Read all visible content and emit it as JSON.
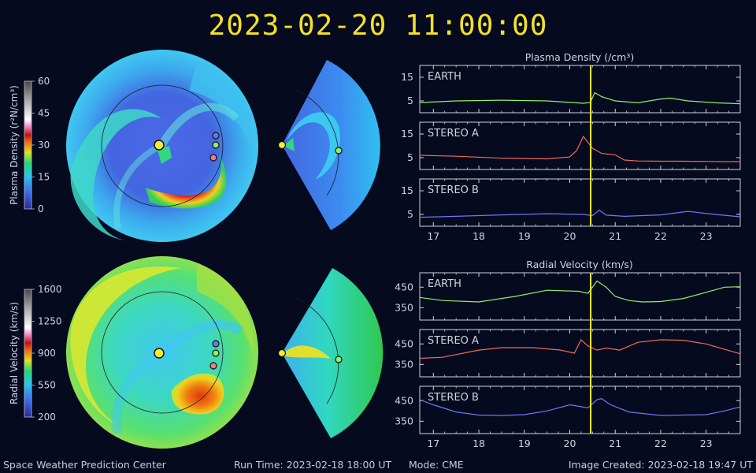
{
  "title": "2023-02-20 11:00:00",
  "colors": {
    "earth": "#8cf26a",
    "stereo_a": "#f06a5a",
    "stereo_b": "#6e78f5",
    "marker": "#f5ee2a",
    "axis": "#cfd3e0"
  },
  "colorbars": {
    "density": {
      "label": "Plasma Density (r²N/cm³)",
      "ticks": [
        "60",
        "45",
        "30",
        "15",
        "0"
      ]
    },
    "velocity": {
      "label": "Radial Velocity (km/s)",
      "ticks": [
        "1600",
        "1250",
        "900",
        "550",
        "200"
      ]
    }
  },
  "footer": {
    "center": "Space Weather Prediction Center",
    "run_time": "Run Time: 2023-02-18 18:00 UT",
    "mode": "Mode: CME",
    "image_created": "Image Created: 2023-02-18 19:47 UT"
  },
  "chart_data": [
    {
      "type": "line",
      "title": "Plasma Density (/cm³)",
      "time_marker": 20.46,
      "xlim": [
        16.7,
        23.75
      ],
      "x_ticks": [
        "17",
        "18",
        "19",
        "20",
        "21",
        "22",
        "23"
      ],
      "panels": [
        {
          "name": "EARTH",
          "ylim": [
            0,
            20
          ],
          "y_ticks": [
            "15",
            "5"
          ],
          "x": [
            16.7,
            17.5,
            18.5,
            19.5,
            20.3,
            20.45,
            20.55,
            20.7,
            21.0,
            21.5,
            22.0,
            22.2,
            22.6,
            23.2,
            23.75
          ],
          "values": [
            4.3,
            5.0,
            5.3,
            5.0,
            4.0,
            4.3,
            8.5,
            6.8,
            5.0,
            4.2,
            5.8,
            6.2,
            5.0,
            4.2,
            3.8
          ]
        },
        {
          "name": "STEREO A",
          "ylim": [
            0,
            20
          ],
          "y_ticks": [
            "15",
            "5"
          ],
          "x": [
            16.7,
            17.5,
            18.5,
            19.5,
            20.0,
            20.15,
            20.3,
            20.5,
            20.7,
            21.0,
            21.2,
            21.5,
            22.0,
            22.5,
            23.0,
            23.75
          ],
          "values": [
            6.0,
            5.6,
            4.8,
            4.5,
            5.3,
            8.0,
            14.0,
            9.0,
            6.8,
            6.2,
            4.0,
            3.6,
            3.5,
            3.5,
            3.4,
            3.3
          ]
        },
        {
          "name": "STEREO B",
          "ylim": [
            0,
            20
          ],
          "y_ticks": [
            "15",
            "5"
          ],
          "x": [
            16.7,
            17.5,
            18.5,
            19.5,
            20.3,
            20.5,
            20.65,
            20.8,
            21.2,
            22.0,
            22.6,
            23.2,
            23.75
          ],
          "values": [
            3.8,
            4.2,
            4.8,
            5.3,
            5.0,
            4.5,
            6.8,
            4.7,
            4.2,
            4.8,
            6.3,
            5.0,
            4.0
          ]
        }
      ]
    },
    {
      "type": "line",
      "title": "Radial Velocity (km/s)",
      "time_marker": 20.46,
      "xlim": [
        16.7,
        23.75
      ],
      "x_ticks": [
        "17",
        "18",
        "19",
        "20",
        "21",
        "22",
        "23"
      ],
      "panels": [
        {
          "name": "EARTH",
          "ylim": [
            290,
            520
          ],
          "y_ticks": [
            "450",
            "350"
          ],
          "x": [
            16.7,
            17.2,
            18.0,
            18.8,
            19.5,
            20.2,
            20.4,
            20.6,
            20.8,
            21.0,
            21.3,
            21.6,
            22.0,
            22.5,
            23.0,
            23.4,
            23.75
          ],
          "values": [
            400,
            385,
            378,
            405,
            435,
            430,
            420,
            480,
            450,
            405,
            385,
            378,
            380,
            395,
            425,
            450,
            452
          ]
        },
        {
          "name": "STEREO A",
          "ylim": [
            290,
            520
          ],
          "y_ticks": [
            "450",
            "350"
          ],
          "x": [
            16.7,
            17.2,
            18.0,
            18.5,
            19.2,
            19.8,
            20.1,
            20.25,
            20.4,
            20.6,
            20.8,
            21.1,
            21.5,
            22.0,
            22.5,
            23.0,
            23.75
          ],
          "values": [
            380,
            385,
            420,
            432,
            432,
            420,
            405,
            470,
            440,
            420,
            430,
            420,
            458,
            470,
            468,
            450,
            402
          ]
        },
        {
          "name": "STEREO B",
          "ylim": [
            290,
            520
          ],
          "y_ticks": [
            "450",
            "350"
          ],
          "x": [
            16.7,
            17.0,
            17.5,
            18.0,
            18.5,
            19.0,
            19.5,
            20.0,
            20.4,
            20.6,
            20.7,
            20.9,
            21.3,
            22.0,
            22.5,
            23.0,
            23.4,
            23.75
          ],
          "values": [
            455,
            430,
            395,
            380,
            378,
            382,
            400,
            430,
            415,
            455,
            460,
            430,
            395,
            378,
            380,
            382,
            400,
            420
          ]
        }
      ]
    }
  ]
}
